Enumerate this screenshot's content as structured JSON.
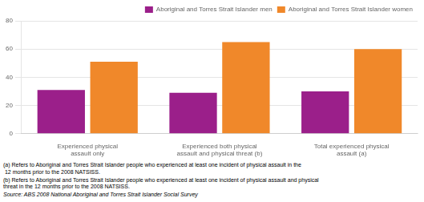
{
  "chart_data": {
    "type": "bar",
    "categories": [
      "Experienced physical\nassault only",
      "Experienced both physical\nassault and physical threat (b)",
      "Total experienced physical\nassault (a)"
    ],
    "series": [
      {
        "name": "Aboriginal and Torres Strait Islander men",
        "color": "#9B1F8A",
        "values": [
          31,
          29,
          30
        ]
      },
      {
        "name": "Aboriginal and Torres Strait Islander women",
        "color": "#F0882A",
        "values": [
          51,
          65,
          60
        ]
      }
    ],
    "ylim": [
      0,
      80
    ],
    "yticks": [
      0,
      20,
      40,
      60,
      80
    ],
    "grid": true,
    "legend": "upper right",
    "annotations": [
      "(a) Refers to Aboriginal and Torres Strait Islander people who experienced at least one incident of physical assault in the\n 12 months prior to the 2008 NATSISS.",
      "(b) Refers to Aboriginal and Torres Strait Islander people who experienced at least one incident of physical assault and physical\nthreat in the 12 months prior to the 2008 NATSISS.",
      "Source: ABS 2008 National Aboriginal and Torres Strait Islander Social Survey"
    ]
  }
}
